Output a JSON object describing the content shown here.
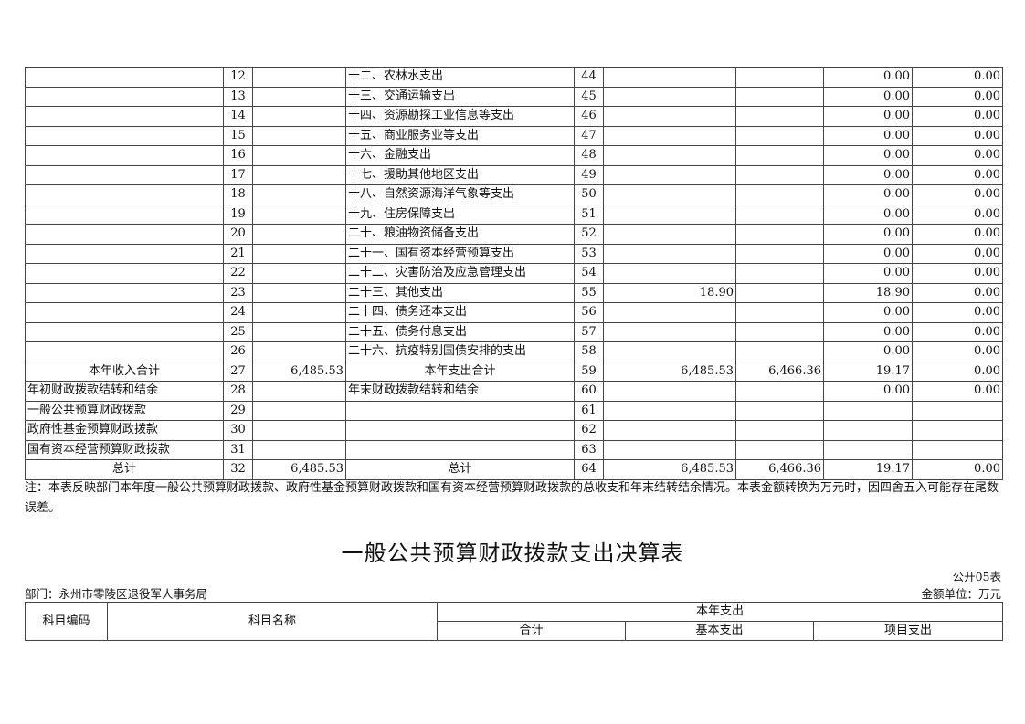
{
  "top_table": {
    "rows": [
      {
        "left_label": "",
        "left_no": "12",
        "left_amount": "",
        "right_label": "十二、农林水支出",
        "right_no": "44",
        "total": "",
        "basic": "",
        "project": "0.00",
        "year_end": "0.00",
        "bold": false
      },
      {
        "left_label": "",
        "left_no": "13",
        "left_amount": "",
        "right_label": "十三、交通运输支出",
        "right_no": "45",
        "total": "",
        "basic": "",
        "project": "0.00",
        "year_end": "0.00",
        "bold": false
      },
      {
        "left_label": "",
        "left_no": "14",
        "left_amount": "",
        "right_label": "十四、资源勘探工业信息等支出",
        "right_no": "46",
        "total": "",
        "basic": "",
        "project": "0.00",
        "year_end": "0.00",
        "bold": false
      },
      {
        "left_label": "",
        "left_no": "15",
        "left_amount": "",
        "right_label": "十五、商业服务业等支出",
        "right_no": "47",
        "total": "",
        "basic": "",
        "project": "0.00",
        "year_end": "0.00",
        "bold": false
      },
      {
        "left_label": "",
        "left_no": "16",
        "left_amount": "",
        "right_label": "十六、金融支出",
        "right_no": "48",
        "total": "",
        "basic": "",
        "project": "0.00",
        "year_end": "0.00",
        "bold": false
      },
      {
        "left_label": "",
        "left_no": "17",
        "left_amount": "",
        "right_label": "十七、援助其他地区支出",
        "right_no": "49",
        "total": "",
        "basic": "",
        "project": "0.00",
        "year_end": "0.00",
        "bold": false
      },
      {
        "left_label": "",
        "left_no": "18",
        "left_amount": "",
        "right_label": "十八、自然资源海洋气象等支出",
        "right_no": "50",
        "total": "",
        "basic": "",
        "project": "0.00",
        "year_end": "0.00",
        "bold": false
      },
      {
        "left_label": "",
        "left_no": "19",
        "left_amount": "",
        "right_label": "十九、住房保障支出",
        "right_no": "51",
        "total": "",
        "basic": "",
        "project": "0.00",
        "year_end": "0.00",
        "bold": false
      },
      {
        "left_label": "",
        "left_no": "20",
        "left_amount": "",
        "right_label": "二十、粮油物资储备支出",
        "right_no": "52",
        "total": "",
        "basic": "",
        "project": "0.00",
        "year_end": "0.00",
        "bold": false
      },
      {
        "left_label": "",
        "left_no": "21",
        "left_amount": "",
        "right_label": "二十一、国有资本经营预算支出",
        "right_no": "53",
        "total": "",
        "basic": "",
        "project": "0.00",
        "year_end": "0.00",
        "bold": false
      },
      {
        "left_label": "",
        "left_no": "22",
        "left_amount": "",
        "right_label": "二十二、灾害防治及应急管理支出",
        "right_no": "54",
        "total": "",
        "basic": "",
        "project": "0.00",
        "year_end": "0.00",
        "bold": false
      },
      {
        "left_label": "",
        "left_no": "23",
        "left_amount": "",
        "right_label": "二十三、其他支出",
        "right_no": "55",
        "total": "18.90",
        "basic": "",
        "project": "18.90",
        "year_end": "0.00",
        "bold": false
      },
      {
        "left_label": "",
        "left_no": "24",
        "left_amount": "",
        "right_label": "二十四、债务还本支出",
        "right_no": "56",
        "total": "",
        "basic": "",
        "project": "0.00",
        "year_end": "0.00",
        "bold": false
      },
      {
        "left_label": "",
        "left_no": "25",
        "left_amount": "",
        "right_label": "二十五、债务付息支出",
        "right_no": "57",
        "total": "",
        "basic": "",
        "project": "0.00",
        "year_end": "0.00",
        "bold": false
      },
      {
        "left_label": "",
        "left_no": "26",
        "left_amount": "",
        "right_label": "二十六、抗疫特别国债安排的支出",
        "right_no": "58",
        "total": "",
        "basic": "",
        "project": "0.00",
        "year_end": "0.00",
        "bold": false
      },
      {
        "left_label": "本年收入合计",
        "left_no": "27",
        "left_amount": "6,485.53",
        "right_label": "本年支出合计",
        "right_no": "59",
        "total": "6,485.53",
        "basic": "6,466.36",
        "project": "19.17",
        "year_end": "0.00",
        "bold": true
      },
      {
        "left_label": "年初财政拨款结转和结余",
        "left_no": "28",
        "left_amount": "",
        "right_label": "年末财政拨款结转和结余",
        "right_no": "60",
        "total": "",
        "basic": "",
        "project": "0.00",
        "year_end": "0.00",
        "bold": false
      },
      {
        "left_label": "一般公共预算财政拨款",
        "left_no": "29",
        "left_amount": "",
        "right_label": "",
        "right_no": "61",
        "total": "",
        "basic": "",
        "project": "",
        "year_end": "",
        "bold": false
      },
      {
        "left_label": "政府性基金预算财政拨款",
        "left_no": "30",
        "left_amount": "",
        "right_label": "",
        "right_no": "62",
        "total": "",
        "basic": "",
        "project": "",
        "year_end": "",
        "bold": false
      },
      {
        "left_label": "国有资本经营预算财政拨款",
        "left_no": "31",
        "left_amount": "",
        "right_label": "",
        "right_no": "63",
        "total": "",
        "basic": "",
        "project": "",
        "year_end": "",
        "bold": false
      },
      {
        "left_label": "总计",
        "left_no": "32",
        "left_amount": "6,485.53",
        "right_label": "总计",
        "right_no": "64",
        "total": "6,485.53",
        "basic": "6,466.36",
        "project": "19.17",
        "year_end": "0.00",
        "bold": true
      }
    ]
  },
  "note": "注：本表反映部门本年度一般公共预算财政拨款、政府性基金预算财政拨款和国有资本经营预算财政拨款的总收支和年末结转结余情况。本表金额转换为万元时，因四舍五入可能存在尾数误差。",
  "second_table": {
    "title": "一般公共预算财政拨款支出决算表",
    "table_no": "公开05表",
    "department": "部门：永州市零陵区退役军人事务局",
    "unit": "金额单位：万元",
    "headers": {
      "code": "科目编码",
      "name": "科目名称",
      "group": "本年支出",
      "total": "合计",
      "basic": "基本支出",
      "project": "项目支出"
    }
  }
}
